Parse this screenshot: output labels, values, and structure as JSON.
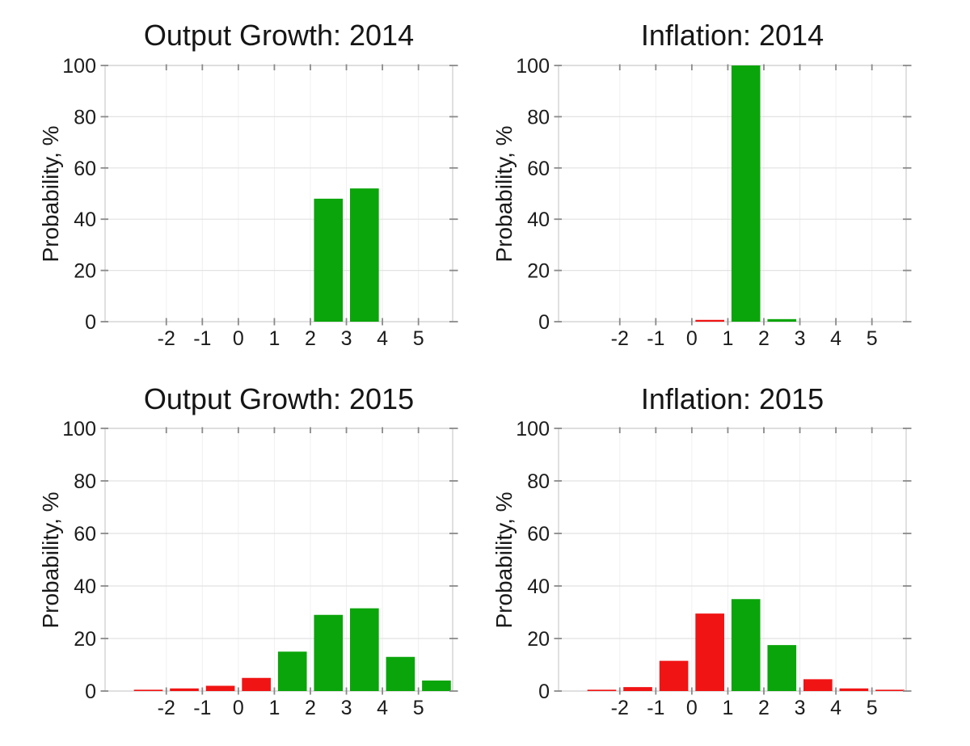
{
  "figure": {
    "background": "#ffffff",
    "description": "2x2 grid of probability histogram forecasts"
  },
  "palette": {
    "bar_green": "#0aa50a",
    "bar_red": "#f01414",
    "grid_h": "#e2e2e2",
    "grid_v": "#f0f0f0",
    "frame": "#cfcfcf",
    "tick": "#8a8a8a",
    "text": "#1c1c1c"
  },
  "chart_data": [
    {
      "type": "bar",
      "title": "Output Growth: 2014",
      "xlabel": "",
      "ylabel": "Probability, %",
      "xlim": [
        -3.7,
        5.95
      ],
      "ylim": [
        0,
        100
      ],
      "xticks": [
        -2,
        -1,
        0,
        1,
        2,
        3,
        4,
        5
      ],
      "yticks": [
        0,
        20,
        40,
        60,
        80,
        100
      ],
      "grid": true,
      "legend": false,
      "bin_width": 0.8,
      "bars": [
        {
          "x": 2.5,
          "value": 48,
          "color": "green"
        },
        {
          "x": 3.5,
          "value": 52,
          "color": "green"
        }
      ]
    },
    {
      "type": "bar",
      "title": "Inflation: 2014",
      "xlabel": "",
      "ylabel": "Probability, %",
      "xlim": [
        -3.7,
        5.95
      ],
      "ylim": [
        0,
        100
      ],
      "xticks": [
        -2,
        -1,
        0,
        1,
        2,
        3,
        4,
        5
      ],
      "yticks": [
        0,
        20,
        40,
        60,
        80,
        100
      ],
      "grid": true,
      "legend": false,
      "bin_width": 0.8,
      "bars": [
        {
          "x": 0.5,
          "value": 0.7,
          "color": "red"
        },
        {
          "x": 1.5,
          "value": 100,
          "color": "green"
        },
        {
          "x": 2.5,
          "value": 1,
          "color": "green"
        }
      ]
    },
    {
      "type": "bar",
      "title": "Output Growth: 2015",
      "xlabel": "",
      "ylabel": "Probability, %",
      "xlim": [
        -3.7,
        5.95
      ],
      "ylim": [
        0,
        100
      ],
      "xticks": [
        -2,
        -1,
        0,
        1,
        2,
        3,
        4,
        5
      ],
      "yticks": [
        0,
        20,
        40,
        60,
        80,
        100
      ],
      "grid": true,
      "legend": false,
      "bin_width": 0.8,
      "bars": [
        {
          "x": -2.5,
          "value": 0.5,
          "color": "red"
        },
        {
          "x": -1.5,
          "value": 1,
          "color": "red"
        },
        {
          "x": -0.5,
          "value": 2,
          "color": "red"
        },
        {
          "x": 0.5,
          "value": 5,
          "color": "red"
        },
        {
          "x": 1.5,
          "value": 15,
          "color": "green"
        },
        {
          "x": 2.5,
          "value": 29,
          "color": "green"
        },
        {
          "x": 3.5,
          "value": 31.5,
          "color": "green"
        },
        {
          "x": 4.5,
          "value": 13,
          "color": "green"
        },
        {
          "x": 5.5,
          "value": 4,
          "color": "green"
        }
      ]
    },
    {
      "type": "bar",
      "title": "Inflation: 2015",
      "xlabel": "",
      "ylabel": "Probability, %",
      "xlim": [
        -3.7,
        5.95
      ],
      "ylim": [
        0,
        100
      ],
      "xticks": [
        -2,
        -1,
        0,
        1,
        2,
        3,
        4,
        5
      ],
      "yticks": [
        0,
        20,
        40,
        60,
        80,
        100
      ],
      "grid": true,
      "legend": false,
      "bin_width": 0.8,
      "bars": [
        {
          "x": -2.5,
          "value": 0.5,
          "color": "red"
        },
        {
          "x": -1.5,
          "value": 1.5,
          "color": "red"
        },
        {
          "x": -0.5,
          "value": 11.5,
          "color": "red"
        },
        {
          "x": 0.5,
          "value": 29.5,
          "color": "red"
        },
        {
          "x": 1.5,
          "value": 35,
          "color": "green"
        },
        {
          "x": 2.5,
          "value": 17.5,
          "color": "green"
        },
        {
          "x": 3.5,
          "value": 4.5,
          "color": "red"
        },
        {
          "x": 4.5,
          "value": 1,
          "color": "red"
        },
        {
          "x": 5.5,
          "value": 0.5,
          "color": "red"
        }
      ]
    }
  ]
}
